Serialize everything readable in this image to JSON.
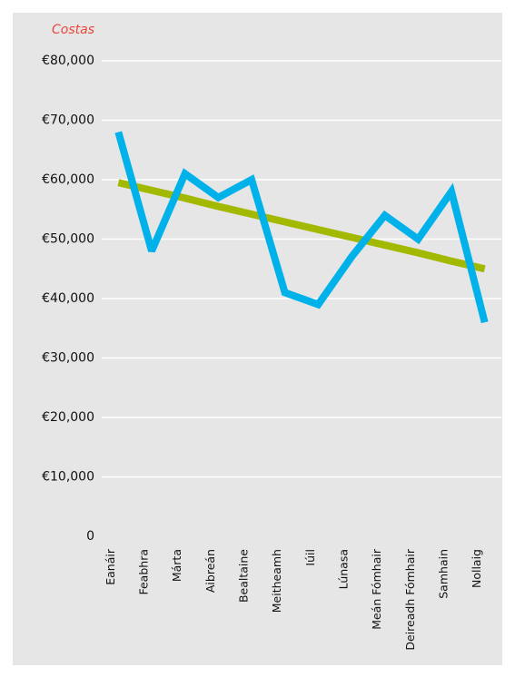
{
  "chart_data": {
    "type": "line",
    "title": "Costas",
    "title_color": "#e8453c",
    "categories": [
      "Eanáir",
      "Feabhra",
      "Márta",
      "Aibreán",
      "Bealtaine",
      "Meitheamh",
      "Iúil",
      "Lúnasa",
      "Meán Fómhair",
      "Deireadh Fómhair",
      "Samhain",
      "Nollaig"
    ],
    "series": [
      {
        "color": "#a3b800",
        "values": [
          59500,
          58200,
          56900,
          55500,
          54200,
          52900,
          51600,
          50300,
          49000,
          47700,
          46300,
          45000
        ]
      },
      {
        "color": "#00b1ea",
        "values": [
          68000,
          48000,
          61000,
          57000,
          60000,
          41000,
          39000,
          47000,
          54000,
          50000,
          58000,
          36000
        ]
      }
    ],
    "ylim": [
      0,
      80000
    ],
    "yticks": [
      0,
      {
        "value": 10000,
        "label": "€10,000"
      },
      {
        "value": 20000,
        "label": "€20,000"
      },
      {
        "value": 30000,
        "label": "€30,000"
      },
      {
        "value": 40000,
        "label": "€40,000"
      },
      {
        "value": 50000,
        "label": "€50,000"
      },
      {
        "value": 60000,
        "label": "€60,000"
      },
      {
        "value": 70000,
        "label": "€70,000"
      },
      {
        "value": 80000,
        "label": "€80,000"
      }
    ],
    "grid": true
  }
}
